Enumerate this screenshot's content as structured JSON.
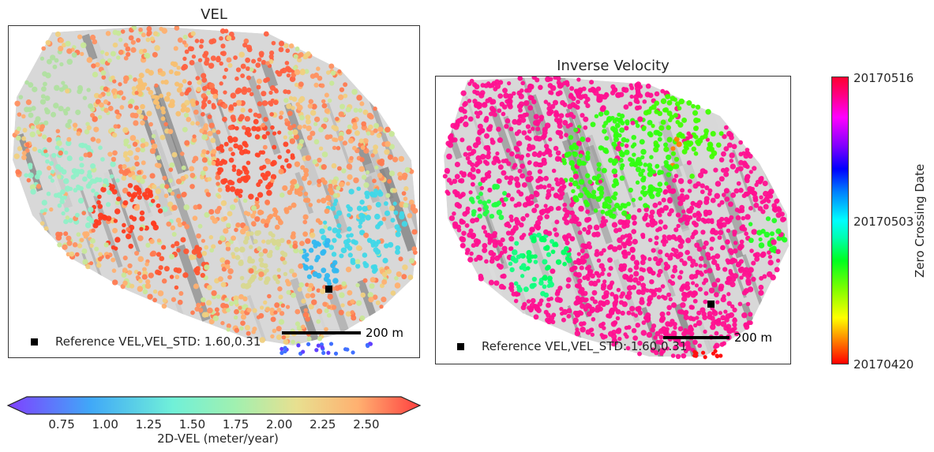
{
  "chart_data": [
    {
      "type": "scatter",
      "title": "VEL",
      "legend": {
        "label": "Reference VEL,VEL_STD: 1.60,0.31",
        "placement": "bottom-left"
      },
      "scale_bar": "200 m",
      "colorbar": {
        "orientation": "horizontal",
        "label": "2D-VEL (meter/year)",
        "ticks": [
          "0.75",
          "1.00",
          "1.25",
          "1.50",
          "1.75",
          "2.00",
          "2.25",
          "2.50"
        ],
        "range": [
          0.55,
          2.7
        ],
        "extend": "both",
        "colormap": "rainbow"
      }
    },
    {
      "type": "scatter",
      "title": "Inverse Velocity",
      "legend": {
        "label": "Reference VEL,VEL_STD: 1.60,0.31",
        "placement": "bottom-left"
      },
      "scale_bar": "200 m",
      "colorbar": {
        "orientation": "vertical",
        "label": "Zero Crossing Date",
        "ticks": [
          "20170516",
          "20170503",
          "20170420"
        ],
        "colormap": "hsv"
      }
    }
  ]
}
